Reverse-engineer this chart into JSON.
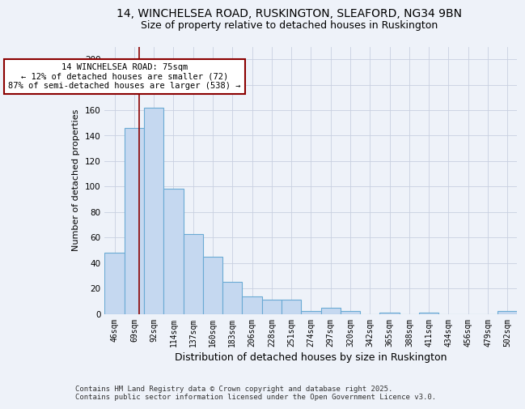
{
  "title1": "14, WINCHELSEA ROAD, RUSKINGTON, SLEAFORD, NG34 9BN",
  "title2": "Size of property relative to detached houses in Ruskington",
  "xlabel": "Distribution of detached houses by size in Ruskington",
  "ylabel": "Number of detached properties",
  "categories": [
    "46sqm",
    "69sqm",
    "92sqm",
    "114sqm",
    "137sqm",
    "160sqm",
    "183sqm",
    "206sqm",
    "228sqm",
    "251sqm",
    "274sqm",
    "297sqm",
    "320sqm",
    "342sqm",
    "365sqm",
    "388sqm",
    "411sqm",
    "434sqm",
    "456sqm",
    "479sqm",
    "502sqm"
  ],
  "values": [
    48,
    146,
    162,
    98,
    63,
    45,
    25,
    14,
    11,
    11,
    2,
    5,
    2,
    0,
    1,
    0,
    1,
    0,
    0,
    0,
    2
  ],
  "bar_color": "#c5d8f0",
  "bar_edge_color": "#6aaad4",
  "vline_color": "#8b0000",
  "vline_pos": 1.26,
  "annotation_text_line1": "14 WINCHELSEA ROAD: 75sqm",
  "annotation_text_line2": "← 12% of detached houses are smaller (72)",
  "annotation_text_line3": "87% of semi-detached houses are larger (538) →",
  "annotation_box_color": "#ffffff",
  "annotation_box_edge": "#8b0000",
  "ylim": [
    0,
    210
  ],
  "yticks": [
    0,
    20,
    40,
    60,
    80,
    100,
    120,
    140,
    160,
    180,
    200
  ],
  "bg_color": "#eef2f9",
  "grid_color": "#c8d0e0",
  "footer": "Contains HM Land Registry data © Crown copyright and database right 2025.\nContains public sector information licensed under the Open Government Licence v3.0.",
  "title_fontsize": 10,
  "subtitle_fontsize": 9,
  "xlabel_fontsize": 9,
  "ylabel_fontsize": 8,
  "tick_fontsize": 7,
  "ann_fontsize": 7.5,
  "footer_fontsize": 6.5
}
